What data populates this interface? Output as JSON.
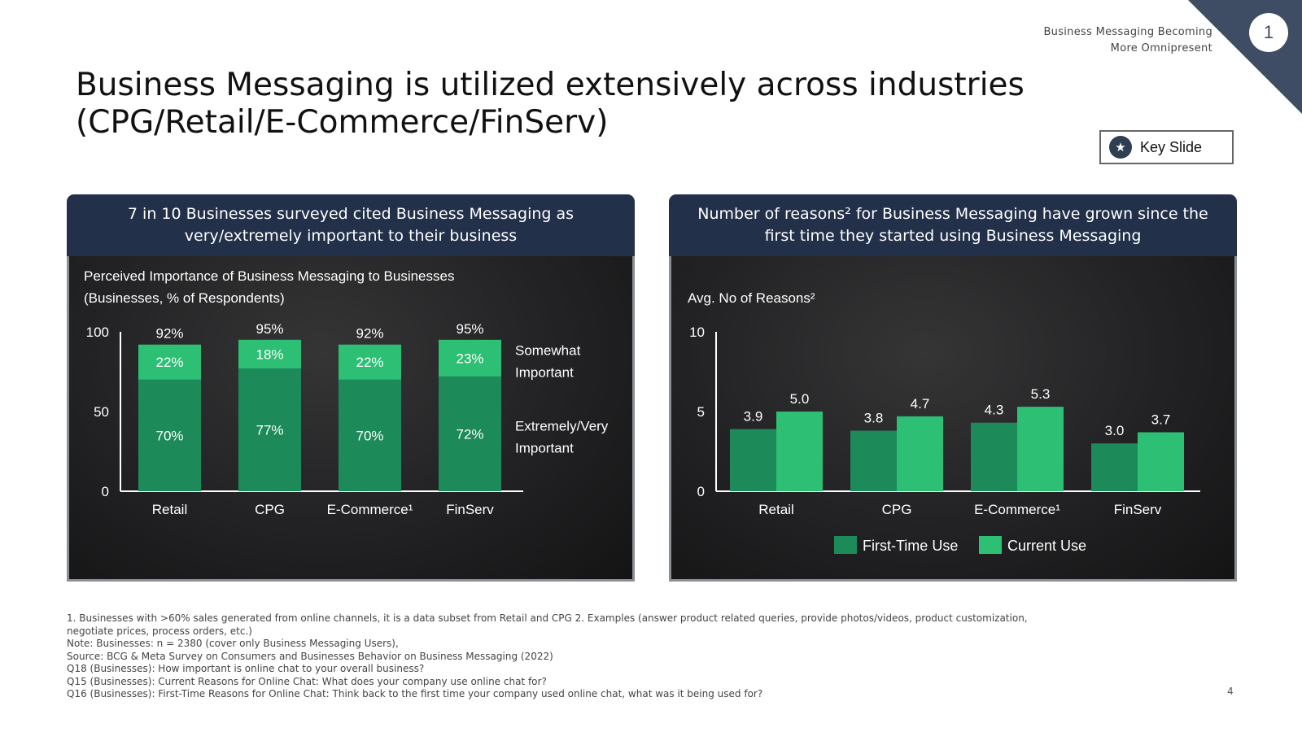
{
  "header": {
    "section_line1": "Business Messaging Becoming",
    "section_line2": "More Omnipresent",
    "page_badge": "1",
    "title": "Business Messaging is utilized extensively across industries (CPG/Retail/E-Commerce/FinServ)",
    "key_slide_label": "Key Slide",
    "key_slide_icon": "star-badge-icon",
    "corner_color": "#3e4d63"
  },
  "left_panel": {
    "header": "7 in 10 Businesses surveyed cited Business Messaging as very/extremely important to their business",
    "chart_title_line1": "Perceived Importance of Business Messaging to Businesses",
    "chart_title_line2": "(Businesses, % of Respondents)"
  },
  "right_panel": {
    "header": "Number of reasons² for Business Messaging have grown since the first time they started using Business Messaging",
    "ylabel": "Avg. No of Reasons²"
  },
  "chart_data": [
    {
      "type": "bar",
      "stacked": true,
      "title": "Perceived Importance of Business Messaging to Businesses",
      "subtitle": "(Businesses, % of Respondents)",
      "categories": [
        "Retail",
        "CPG",
        "E-Commerce¹",
        "FinServ"
      ],
      "series": [
        {
          "name": "Extremely/Very Important",
          "values": [
            70,
            77,
            70,
            72
          ],
          "labels": [
            "70%",
            "77%",
            "70%",
            "72%"
          ],
          "color": "#1d8a5a"
        },
        {
          "name": "Somewhat Important",
          "values": [
            22,
            18,
            22,
            23
          ],
          "labels": [
            "22%",
            "18%",
            "22%",
            "23%"
          ],
          "color": "#2dbf74"
        }
      ],
      "totals": [
        "92%",
        "95%",
        "92%",
        "95%"
      ],
      "ylim": [
        0,
        100
      ],
      "yticks": [
        "0",
        "50",
        "100"
      ],
      "legend_placement": "right",
      "grid": false
    },
    {
      "type": "bar",
      "stacked": false,
      "title": "",
      "ylabel": "Avg. No of Reasons²",
      "categories": [
        "Retail",
        "CPG",
        "E-Commerce¹",
        "FinServ"
      ],
      "series": [
        {
          "name": "First-Time Use",
          "values": [
            3.9,
            3.8,
            4.3,
            3.0
          ],
          "labels": [
            "3.9",
            "3.8",
            "4.3",
            "3.0"
          ],
          "color": "#1d8a5a"
        },
        {
          "name": "Current Use",
          "values": [
            5.0,
            4.7,
            5.3,
            3.7
          ],
          "labels": [
            "5.0",
            "4.7",
            "5.3",
            "3.7"
          ],
          "color": "#2dbf74"
        }
      ],
      "ylim": [
        0,
        10
      ],
      "yticks": [
        "0",
        "5",
        "10"
      ],
      "legend_placement": "bottom",
      "grid": false
    }
  ],
  "footnotes": [
    "1. Businesses with >60% sales generated from online channels, it is a data subset from Retail and CPG  2. Examples (answer product related queries, provide photos/videos, product customization,",
    "negotiate prices, process orders, etc.)",
    "Note: Businesses: n = 2380 (cover only Business Messaging Users),",
    "Source: BCG & Meta Survey on Consumers and Businesses Behavior on Business Messaging (2022)",
    "Q18 (Businesses): How important is online chat to your overall business?",
    "Q15 (Businesses): Current Reasons for Online Chat: What does your company use online chat for?",
    "Q16 (Businesses): First-Time Reasons for Online Chat: Think back to the first time your company used online chat, what was it being used for?"
  ],
  "slide_number": "4"
}
